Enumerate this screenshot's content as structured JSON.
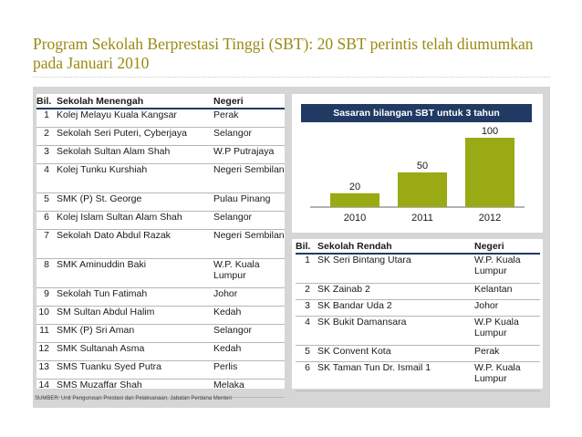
{
  "title": "Program Sekolah Berprestasi Tinggi (SBT): 20 SBT perintis telah diumumkan pada Januari 2010",
  "secondary": {
    "headers": {
      "bil": "Bil.",
      "school": "Sekolah Menengah",
      "state": "Negeri"
    },
    "rows": [
      {
        "bil": "1",
        "school": "Kolej Melayu Kuala Kangsar",
        "state": "Perak"
      },
      {
        "bil": "2",
        "school": "Sekolah Seri Puteri, Cyberjaya",
        "state": "Selangor"
      },
      {
        "bil": "3",
        "school": "Sekolah Sultan Alam Shah",
        "state": "W.P Putrajaya"
      },
      {
        "bil": "4",
        "school": "Kolej Tunku Kurshiah",
        "state": "Negeri Sembilan"
      },
      {
        "bil": "5",
        "school": "SMK (P) St. George",
        "state": "Pulau Pinang"
      },
      {
        "bil": "6",
        "school": "Kolej Islam Sultan Alam Shah",
        "state": "Selangor"
      },
      {
        "bil": "7",
        "school": "Sekolah Dato Abdul Razak",
        "state": "Negeri Sembilan"
      },
      {
        "bil": "8",
        "school": "SMK Aminuddin Baki",
        "state": "W.P. Kuala Lumpur"
      },
      {
        "bil": "9",
        "school": "Sekolah Tun Fatimah",
        "state": "Johor"
      },
      {
        "bil": "10",
        "school": "SM Sultan Abdul Halim",
        "state": "Kedah"
      },
      {
        "bil": "11",
        "school": "SMK (P) Sri Aman",
        "state": "Selangor"
      },
      {
        "bil": "12",
        "school": "SMK Sultanah Asma",
        "state": "Kedah"
      },
      {
        "bil": "13",
        "school": "SMS Tuanku Syed Putra",
        "state": "Perlis"
      },
      {
        "bil": "14",
        "school": "SMS Muzaffar Shah",
        "state": "Melaka"
      }
    ]
  },
  "chart_data": {
    "type": "bar",
    "title": "Sasaran bilangan SBT untuk 3 tahun",
    "categories": [
      "2010",
      "2011",
      "2012"
    ],
    "values": [
      20,
      50,
      100
    ],
    "bar_color": "#9aaa14",
    "title_bg": "#203a63"
  },
  "primary": {
    "headers": {
      "bil": "Bil.",
      "school": "Sekolah Rendah",
      "state": "Negeri"
    },
    "rows": [
      {
        "bil": "1",
        "school": "SK Seri Bintang Utara",
        "state": "W.P. Kuala Lumpur"
      },
      {
        "bil": "2",
        "school": "SK Zainab 2",
        "state": "Kelantan"
      },
      {
        "bil": "3",
        "school": "SK Bandar Uda 2",
        "state": "Johor"
      },
      {
        "bil": "4",
        "school": "SK Bukit Damansara",
        "state": "W.P Kuala Lumpur"
      },
      {
        "bil": "5",
        "school": "SK Convent  Kota",
        "state": "Perak"
      },
      {
        "bil": "6",
        "school": "SK Taman Tun Dr. Ismail 1",
        "state": "W.P. Kuala Lumpur"
      }
    ]
  },
  "source": "SUMBER: Unit Pengurusan Prestasi dan Pelaksanaan, Jabatan Perdana Menteri",
  "colors": {
    "title": "#9a8a12",
    "accent": "#203a63",
    "panel": "#d6d6d6"
  }
}
